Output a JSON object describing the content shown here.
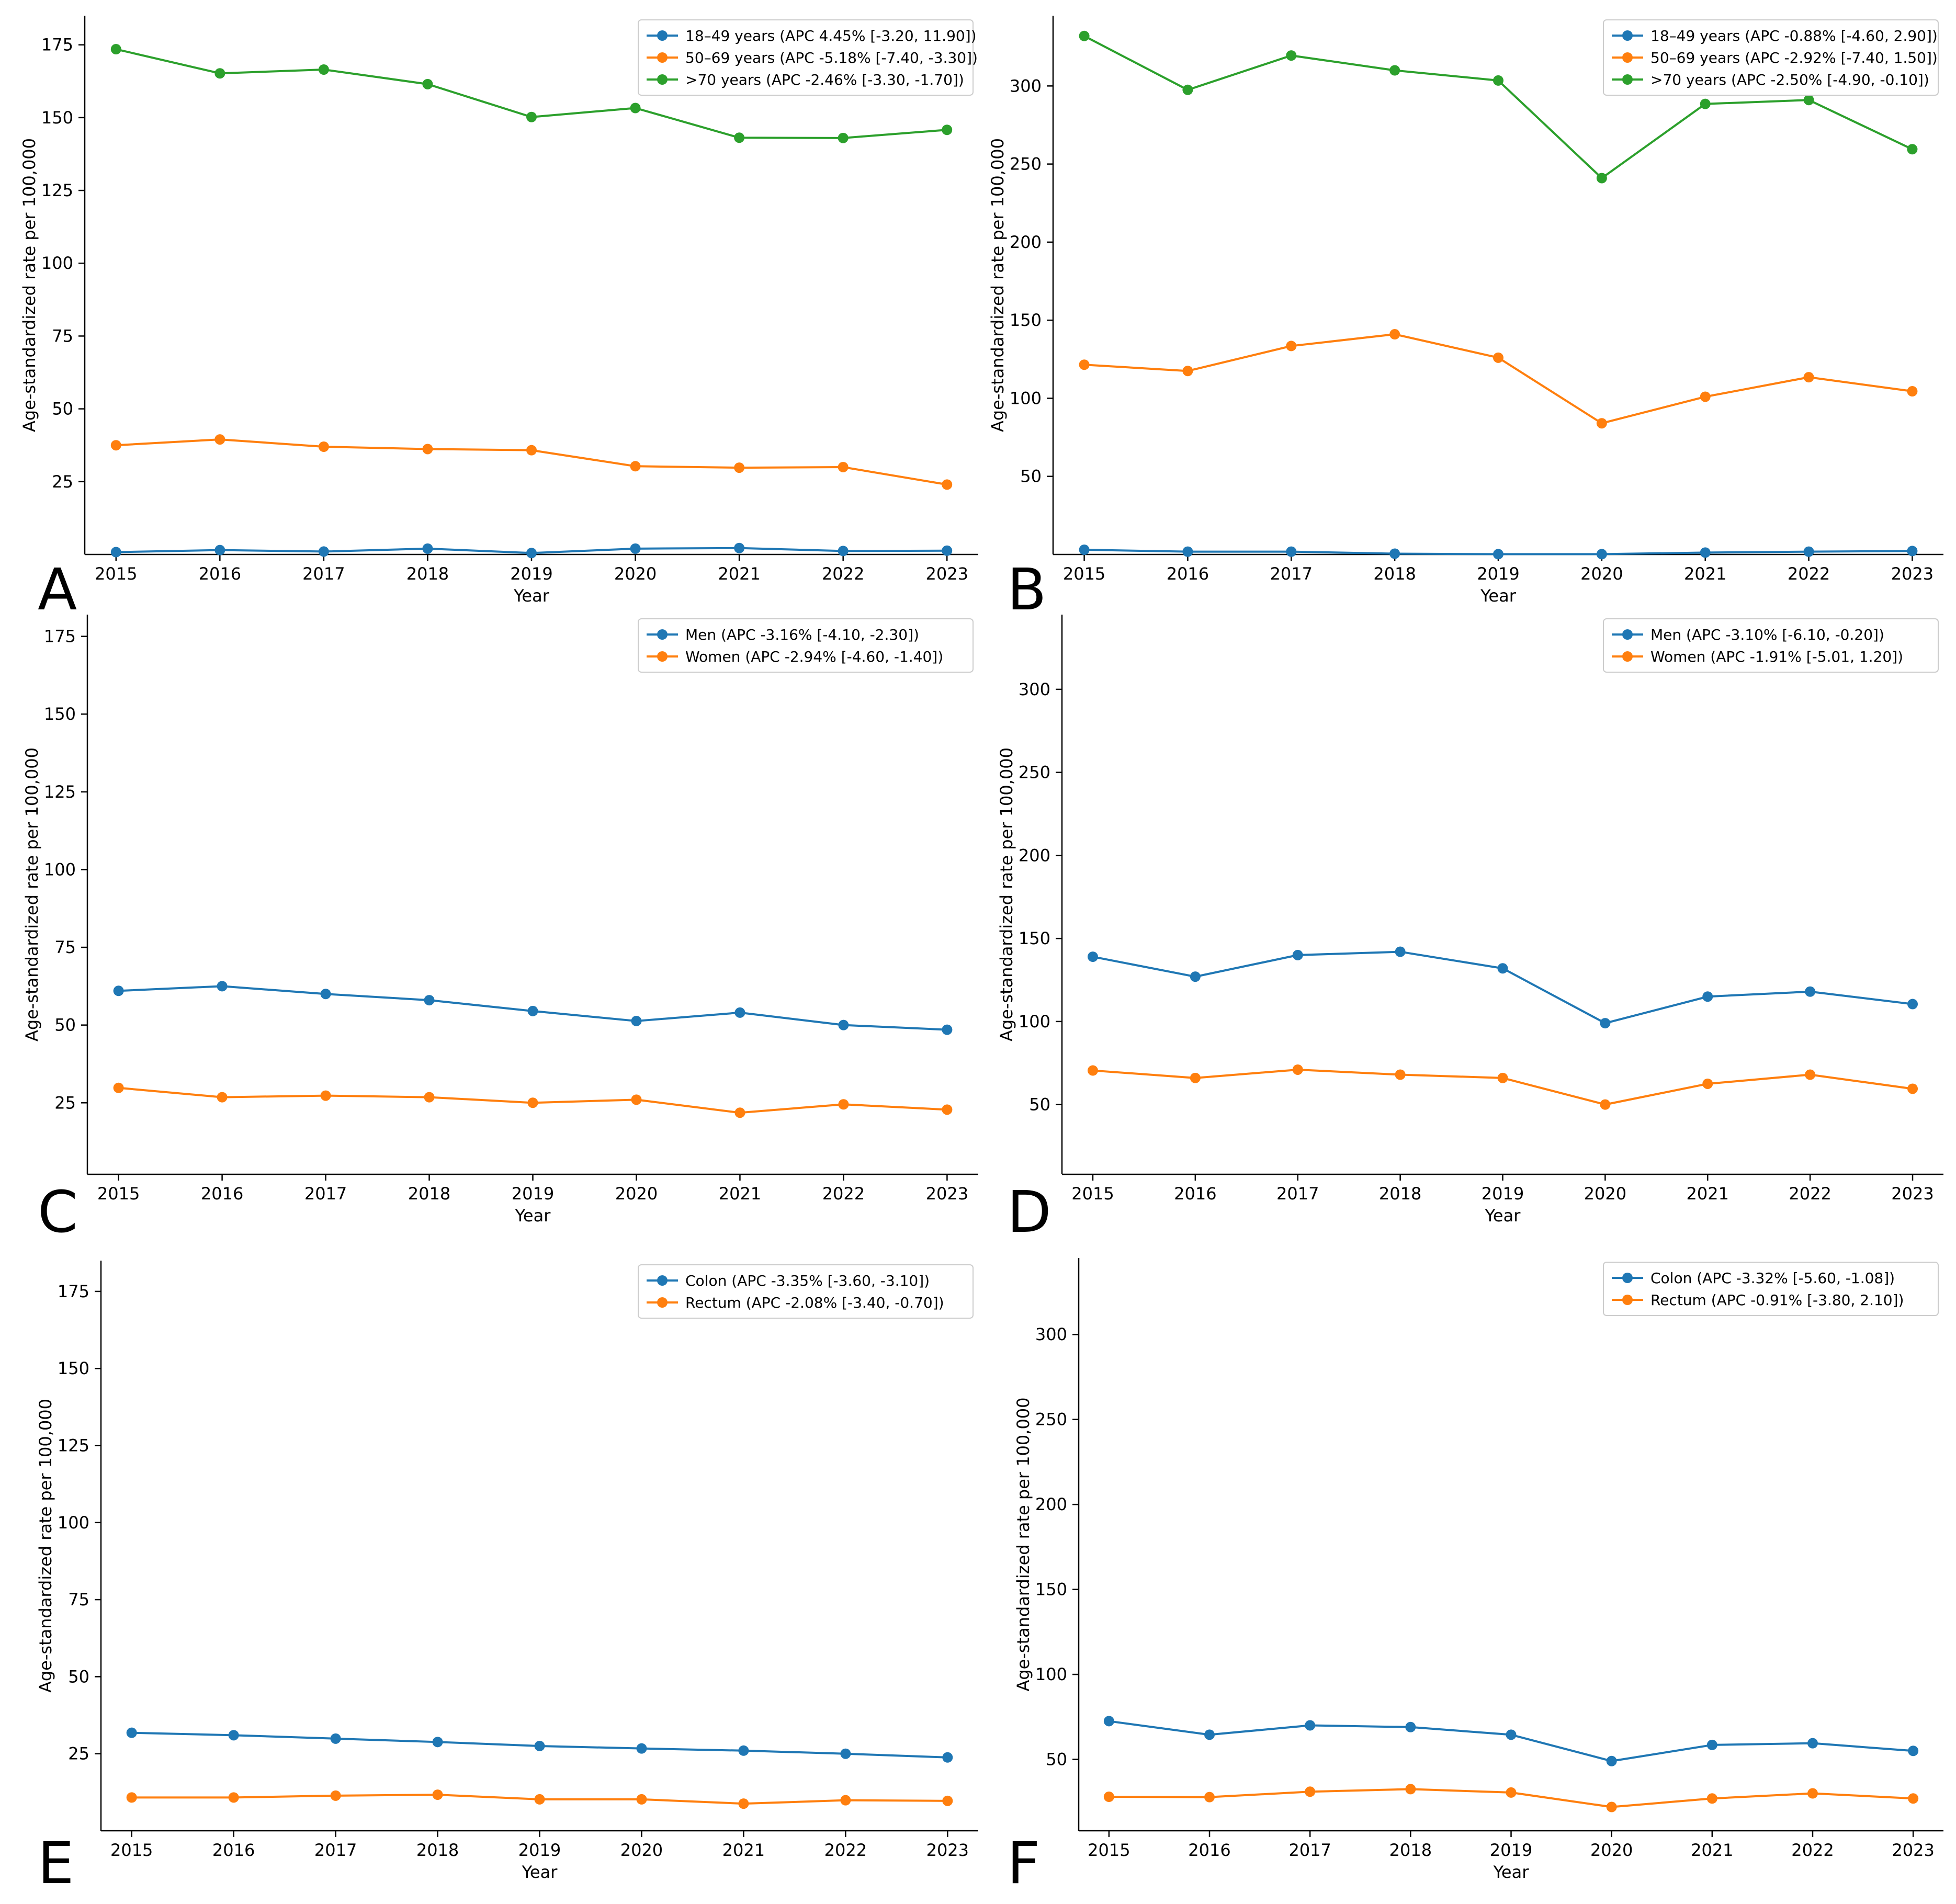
{
  "colors": {
    "blue": "#1f77b4",
    "orange": "#ff7f0e",
    "green": "#2ca02c",
    "axis": "#000000",
    "legend_border": "#cccccc"
  },
  "chart_data": [
    {
      "panel": "A",
      "type": "line",
      "x": [
        2015,
        2016,
        2017,
        2018,
        2019,
        2020,
        2021,
        2022,
        2023
      ],
      "xlabel": "Year",
      "ylabel": "Age-standardized rate per 100,000",
      "ylim": [
        0,
        185
      ],
      "yticks": [
        25,
        50,
        75,
        100,
        125,
        150,
        175
      ],
      "legend": "top-right",
      "grid": false,
      "series": [
        {
          "name": "18–49 years (APC 4.45% [-3.20, 11.90])",
          "color": "#1f77b4",
          "values": [
            0.8,
            1.5,
            1.0,
            2.0,
            0.5,
            2.0,
            2.2,
            1.2,
            1.3
          ]
        },
        {
          "name": "50–69 years (APC -5.18% [-7.40, -3.30])",
          "color": "#ff7f0e",
          "values": [
            37.5,
            39.5,
            37.0,
            36.2,
            35.8,
            30.3,
            29.8,
            30.0,
            24.0
          ]
        },
        {
          "name": ">70 years (APC -2.46% [-3.30, -1.70])",
          "color": "#2ca02c",
          "values": [
            173.5,
            165.2,
            166.5,
            161.5,
            150.2,
            153.3,
            143.1,
            143.0,
            145.8
          ]
        }
      ]
    },
    {
      "panel": "B",
      "type": "line",
      "x": [
        2015,
        2016,
        2017,
        2018,
        2019,
        2020,
        2021,
        2022,
        2023
      ],
      "xlabel": "Year",
      "ylabel": "Age-standardized rate per 100,000",
      "ylim": [
        0,
        345
      ],
      "yticks": [
        50,
        100,
        150,
        200,
        250,
        300
      ],
      "legend": "top-right",
      "grid": false,
      "series": [
        {
          "name": "18–49 years (APC -0.88% [-4.60, 2.90])",
          "color": "#1f77b4",
          "values": [
            3.0,
            1.8,
            1.8,
            0.5,
            0.2,
            0.2,
            1.2,
            1.8,
            2.2
          ]
        },
        {
          "name": "50–69 years (APC -2.92% [-7.40, 1.50])",
          "color": "#ff7f0e",
          "values": [
            121.5,
            117.5,
            133.5,
            141.0,
            126.0,
            84.0,
            101.0,
            113.5,
            104.5
          ]
        },
        {
          "name": ">70 years (APC -2.50% [-4.90, -0.10])",
          "color": "#2ca02c",
          "values": [
            332.0,
            297.5,
            319.5,
            310.0,
            303.5,
            241.0,
            288.5,
            291.0,
            259.5
          ]
        }
      ]
    },
    {
      "panel": "C",
      "type": "line",
      "x": [
        2015,
        2016,
        2017,
        2018,
        2019,
        2020,
        2021,
        2022,
        2023
      ],
      "xlabel": "Year",
      "ylabel": "Age-standardized rate per 100,000",
      "ylim": [
        2,
        182
      ],
      "yticks": [
        25,
        50,
        75,
        100,
        125,
        150,
        175
      ],
      "legend": "top-right",
      "grid": false,
      "series": [
        {
          "name": "Men (APC -3.16% [-4.10, -2.30])",
          "color": "#1f77b4",
          "values": [
            61.0,
            62.5,
            60.0,
            58.0,
            54.5,
            51.3,
            54.0,
            50.0,
            48.5
          ]
        },
        {
          "name": "Women (APC -2.94% [-4.60, -1.40])",
          "color": "#ff7f0e",
          "values": [
            29.8,
            26.8,
            27.3,
            26.8,
            25.0,
            26.0,
            21.8,
            24.5,
            22.8
          ]
        }
      ]
    },
    {
      "panel": "D",
      "type": "line",
      "x": [
        2015,
        2016,
        2017,
        2018,
        2019,
        2020,
        2021,
        2022,
        2023
      ],
      "xlabel": "Year",
      "ylabel": "Age-standardized rate per 100,000",
      "ylim": [
        8,
        345
      ],
      "yticks": [
        50,
        100,
        150,
        200,
        250,
        300
      ],
      "legend": "top-right",
      "grid": false,
      "series": [
        {
          "name": "Men (APC -3.10% [-6.10, -0.20])",
          "color": "#1f77b4",
          "values": [
            139.0,
            127.0,
            140.0,
            142.0,
            132.0,
            99.0,
            115.0,
            118.0,
            110.5
          ]
        },
        {
          "name": "Women (APC -1.91% [-5.01, 1.20])",
          "color": "#ff7f0e",
          "values": [
            70.5,
            66.0,
            71.0,
            68.0,
            66.0,
            50.0,
            62.5,
            68.0,
            59.5
          ]
        }
      ]
    },
    {
      "panel": "E",
      "type": "line",
      "x": [
        2015,
        2016,
        2017,
        2018,
        2019,
        2020,
        2021,
        2022,
        2023
      ],
      "xlabel": "Year",
      "ylabel": "Age-standardized rate per 100,000",
      "ylim": [
        0,
        185
      ],
      "yticks": [
        25,
        50,
        75,
        100,
        125,
        150,
        175
      ],
      "legend": "top-right",
      "grid": false,
      "series": [
        {
          "name": "Colon (APC -3.35% [-3.60, -3.10])",
          "color": "#1f77b4",
          "values": [
            31.8,
            31.0,
            29.9,
            28.8,
            27.5,
            26.7,
            26.0,
            25.0,
            23.8
          ]
        },
        {
          "name": "Rectum (APC -2.08% [-3.40, -0.70])",
          "color": "#ff7f0e",
          "values": [
            10.8,
            10.8,
            11.4,
            11.7,
            10.2,
            10.2,
            8.8,
            9.9,
            9.7
          ]
        }
      ]
    },
    {
      "panel": "F",
      "type": "line",
      "x": [
        2015,
        2016,
        2017,
        2018,
        2019,
        2020,
        2021,
        2022,
        2023
      ],
      "xlabel": "Year",
      "ylabel": "Age-standardized rate per 100,000",
      "ylim": [
        8,
        345
      ],
      "yticks": [
        50,
        100,
        150,
        200,
        250,
        300
      ],
      "legend": "top-right",
      "grid": false,
      "series": [
        {
          "name": "Colon (APC -3.32% [-5.60, -1.08])",
          "color": "#1f77b4",
          "values": [
            72.5,
            64.5,
            70.0,
            69.0,
            64.5,
            49.0,
            58.5,
            59.5,
            55.0
          ]
        },
        {
          "name": "Rectum (APC -0.91% [-3.80, 2.10])",
          "color": "#ff7f0e",
          "values": [
            28.0,
            27.8,
            31.0,
            32.5,
            30.5,
            22.0,
            27.0,
            30.0,
            27.0
          ]
        }
      ]
    }
  ]
}
